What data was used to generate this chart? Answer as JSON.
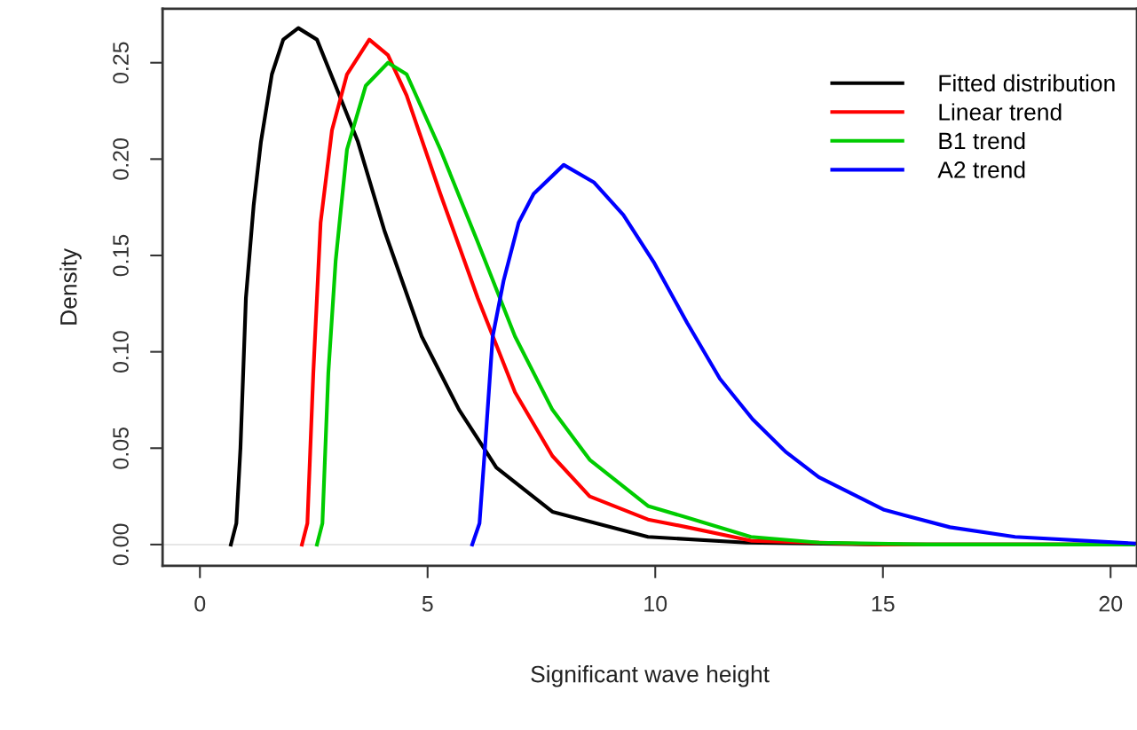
{
  "chart_data": {
    "type": "line",
    "xlabel": "Significant wave height",
    "ylabel": "Density",
    "xlim": [
      -0.82,
      20.58
    ],
    "ylim": [
      -0.011,
      0.278
    ],
    "xticks": [
      0,
      5,
      10,
      15,
      20
    ],
    "yticks": [
      {
        "value": 0,
        "label": "0.00"
      },
      {
        "value": 0.05,
        "label": "0.05"
      },
      {
        "value": 0.1,
        "label": "0.10"
      },
      {
        "value": 0.15,
        "label": "0.15"
      },
      {
        "value": 0.2,
        "label": "0.20"
      },
      {
        "value": 0.25,
        "label": "0.25"
      }
    ],
    "legend": "top right",
    "grid": false,
    "marker": "none",
    "line_style": "solid",
    "ref_lines": [
      {
        "axis": "y",
        "value": 0,
        "color": "#e6e6e6"
      }
    ],
    "series": [
      {
        "name": "Fitted distribution",
        "color": "#000000",
        "x": [
          0.68,
          0.8,
          0.89,
          1.01,
          1.18,
          1.34,
          1.58,
          1.83,
          2.16,
          2.57,
          2.98,
          3.47,
          4.05,
          4.87,
          5.69,
          6.51,
          7.74,
          9.84,
          12,
          15,
          20.5
        ],
        "values": [
          0,
          0.011,
          0.05,
          0.128,
          0.176,
          0.209,
          0.244,
          0.262,
          0.268,
          0.262,
          0.238,
          0.209,
          0.163,
          0.108,
          0.07,
          0.04,
          0.017,
          0.004,
          0.001,
          0,
          0
        ]
      },
      {
        "name": "Linear trend",
        "color": "#ff0000",
        "x": [
          2.24,
          2.36,
          2.49,
          2.65,
          2.9,
          3.23,
          3.72,
          4.13,
          4.54,
          5.28,
          6.1,
          6.92,
          7.74,
          8.56,
          9.84,
          10.7,
          12.1,
          15,
          20.5
        ],
        "values": [
          0,
          0.011,
          0.089,
          0.167,
          0.215,
          0.244,
          0.262,
          0.254,
          0.233,
          0.182,
          0.128,
          0.079,
          0.046,
          0.025,
          0.013,
          0.009,
          0.002,
          0,
          0
        ]
      },
      {
        "name": "B1 trend",
        "color": "#00cc00",
        "x": [
          2.57,
          2.69,
          2.82,
          2.98,
          3.23,
          3.64,
          4.13,
          4.54,
          5.28,
          6.1,
          6.92,
          7.74,
          8.56,
          9.84,
          10.7,
          12.1,
          13.6,
          16,
          20.5
        ],
        "values": [
          0,
          0.011,
          0.089,
          0.147,
          0.205,
          0.238,
          0.25,
          0.244,
          0.205,
          0.157,
          0.108,
          0.07,
          0.044,
          0.02,
          0.014,
          0.004,
          0.001,
          0,
          0
        ]
      },
      {
        "name": "A2 trend",
        "color": "#0000ff",
        "x": [
          5.98,
          6.14,
          6.26,
          6.43,
          6.67,
          7.0,
          7.33,
          7.99,
          8.65,
          9.3,
          9.98,
          10.7,
          11.42,
          12.14,
          12.87,
          13.59,
          15.03,
          16.47,
          17.9,
          20.58
        ],
        "values": [
          0,
          0.011,
          0.05,
          0.108,
          0.137,
          0.167,
          0.182,
          0.197,
          0.188,
          0.171,
          0.146,
          0.115,
          0.086,
          0.065,
          0.048,
          0.035,
          0.018,
          0.009,
          0.004,
          0.0005
        ]
      }
    ]
  }
}
